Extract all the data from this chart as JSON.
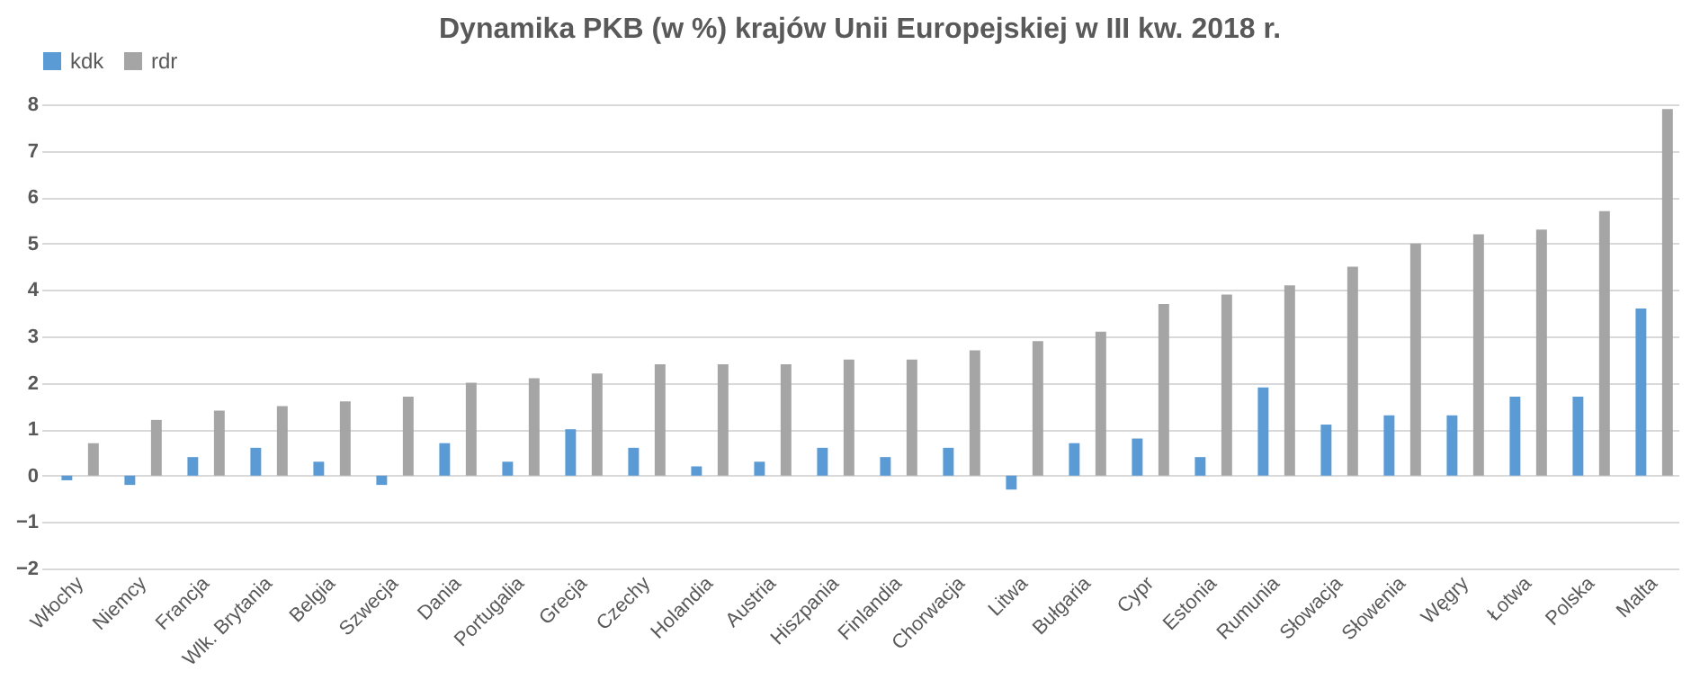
{
  "chart_data": {
    "type": "bar",
    "title": "Dynamika PKB (w %) krajów Unii Europejskiej w III kw. 2018 r.",
    "categories": [
      "Włochy",
      "Niemcy",
      "Francja",
      "Wlk. Brytania",
      "Belgia",
      "Szwecja",
      "Dania",
      "Portugalia",
      "Grecja",
      "Czechy",
      "Holandia",
      "Austria",
      "Hiszpania",
      "Finlandia",
      "Chorwacja",
      "Litwa",
      "Bułgaria",
      "Cypr",
      "Estonia",
      "Rumunia",
      "Słowacja",
      "Słowenia",
      "Węgry",
      "Łotwa",
      "Polska",
      "Malta"
    ],
    "series": [
      {
        "name": "kdk",
        "color": "#5b9bd5",
        "values": [
          -0.1,
          -0.2,
          0.4,
          0.6,
          0.3,
          -0.2,
          0.7,
          0.3,
          1.0,
          0.6,
          0.2,
          0.3,
          0.6,
          0.4,
          0.6,
          -0.3,
          0.7,
          0.8,
          0.4,
          1.9,
          1.1,
          1.3,
          1.3,
          1.7,
          1.7,
          3.6
        ]
      },
      {
        "name": "rdr",
        "color": "#a5a5a5",
        "values": [
          0.7,
          1.2,
          1.4,
          1.5,
          1.6,
          1.7,
          2.0,
          2.1,
          2.2,
          2.4,
          2.4,
          2.4,
          2.5,
          2.5,
          2.7,
          2.9,
          3.1,
          3.7,
          3.9,
          4.1,
          4.5,
          5.0,
          5.2,
          5.3,
          5.7,
          7.9
        ]
      }
    ],
    "ylim": [
      -2,
      8
    ],
    "yticks": [
      -2,
      -1,
      0,
      1,
      2,
      3,
      4,
      5,
      6,
      7,
      8
    ],
    "grid": "y",
    "legend": "top"
  }
}
